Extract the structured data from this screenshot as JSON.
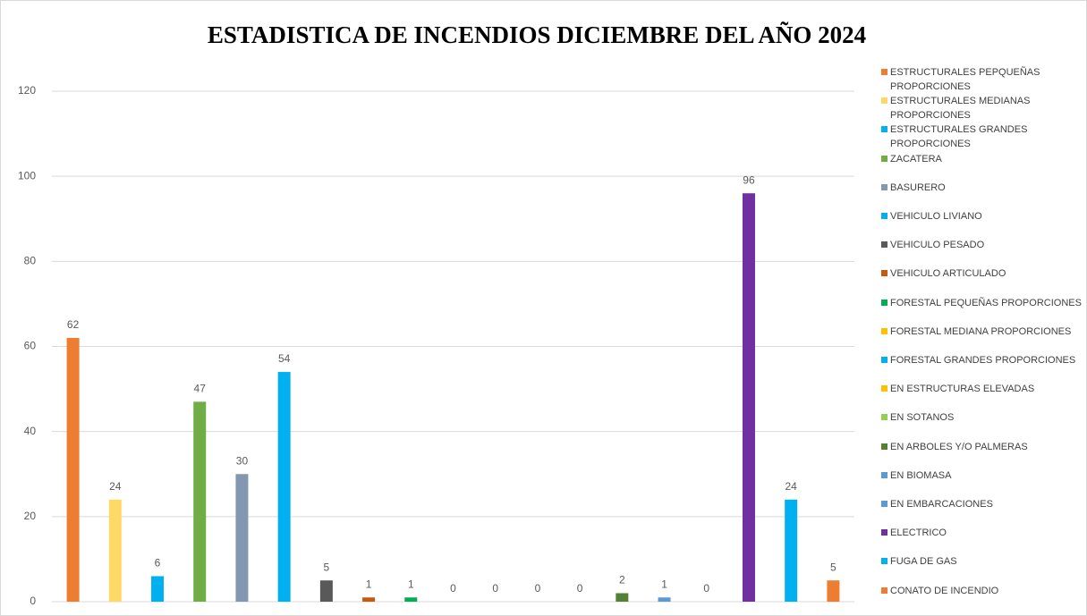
{
  "chart_data": {
    "type": "bar",
    "title": "ESTADISTICA DE INCENDIOS DICIEMBRE DEL AÑO 2024",
    "ylim": [
      0,
      120
    ],
    "yticks": [
      0,
      20,
      40,
      60,
      80,
      100,
      120
    ],
    "grid": true,
    "legend": "right",
    "series": [
      {
        "name": "ESTRUCTURALES PEPQUEÑAS PROPORCIONES",
        "color": "#ed7d31",
        "values": [
          62
        ]
      },
      {
        "name": "ESTRUCTURALES MEDIANAS PROPORCIONES",
        "color": "#ffd966",
        "values": [
          24
        ]
      },
      {
        "name": "ESTRUCTURALES GRANDES PROPORCIONES",
        "color": "#00b0f0",
        "values": [
          6
        ]
      },
      {
        "name": "ZACATERA",
        "color": "#70ad47",
        "values": [
          47
        ]
      },
      {
        "name": "BASURERO",
        "color": "#8497b0",
        "values": [
          30
        ]
      },
      {
        "name": "VEHICULO LIVIANO",
        "color": "#00b0f0",
        "values": [
          54
        ]
      },
      {
        "name": "VEHICULO PESADO",
        "color": "#595959",
        "values": [
          5
        ]
      },
      {
        "name": "VEHICULO ARTICULADO",
        "color": "#c55a11",
        "values": [
          1
        ]
      },
      {
        "name": "FORESTAL PEQUEÑAS PROPORCIONES",
        "color": "#00b050",
        "values": [
          1
        ]
      },
      {
        "name": "FORESTAL MEDIANA PROPORCIONES",
        "color": "#ffc000",
        "values": [
          0
        ]
      },
      {
        "name": "FORESTAL GRANDES PROPORCIONES",
        "color": "#00b0f0",
        "values": [
          0
        ]
      },
      {
        "name": "EN ESTRUCTURAS ELEVADAS",
        "color": "#ffc000",
        "values": [
          0
        ]
      },
      {
        "name": "EN SOTANOS",
        "color": "#92d050",
        "values": [
          0
        ]
      },
      {
        "name": "EN ARBOLES Y/O PALMERAS",
        "color": "#548235",
        "values": [
          2
        ]
      },
      {
        "name": "EN BIOMASA",
        "color": "#5b9bd5",
        "values": [
          1
        ]
      },
      {
        "name": "EN EMBARCACIONES",
        "color": "#5b9bd5",
        "values": [
          0
        ]
      },
      {
        "name": "ELECTRICO",
        "color": "#7030a0",
        "values": [
          96
        ]
      },
      {
        "name": "FUGA DE GAS",
        "color": "#00b0f0",
        "values": [
          24
        ]
      },
      {
        "name": "CONATO DE INCENDIO",
        "color": "#ed7d31",
        "values": [
          5
        ]
      }
    ]
  }
}
